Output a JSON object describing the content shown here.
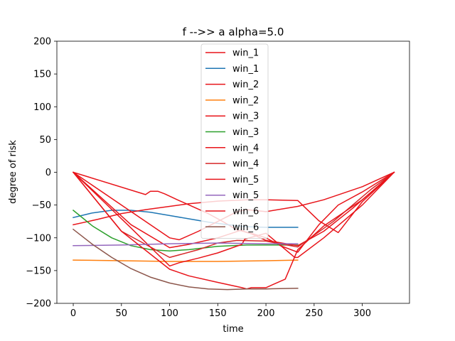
{
  "chart_data": {
    "type": "line",
    "title": "f -->> a  alpha=5.0",
    "xlabel": "time",
    "ylabel": "degree of risk",
    "xlim": [
      -17,
      349
    ],
    "ylim": [
      -200,
      200
    ],
    "xticks": [
      0,
      50,
      100,
      150,
      200,
      250,
      300
    ],
    "yticks": [
      200,
      150,
      100,
      50,
      0,
      -50,
      -100,
      -150,
      -200
    ],
    "xtick_labels": [
      "0",
      "50",
      "100",
      "150",
      "200",
      "250",
      "300"
    ],
    "ytick_labels": [
      "200",
      "150",
      "100",
      "50",
      "0",
      "−50",
      "−100",
      "−150",
      "−200"
    ],
    "grid": false,
    "legend_position": "top-center",
    "series": [
      {
        "name": "win_1",
        "color": "#e8141a",
        "x": [
          0,
          75,
          80,
          88,
          95,
          108,
          125,
          140,
          155,
          170,
          185,
          200,
          215,
          233,
          255,
          275,
          300,
          333
        ],
        "y": [
          0,
          -34,
          -29,
          -29,
          -33,
          -42,
          -53,
          -63,
          -75,
          -88,
          -93,
          -100,
          -112,
          -122,
          -80,
          -50,
          -30,
          0
        ]
      },
      {
        "name": "win_1",
        "color": "#1f77b4",
        "x": [
          0,
          20,
          40,
          60,
          80,
          100,
          120,
          140,
          160,
          180,
          200,
          233
        ],
        "y": [
          -69,
          -62,
          -58,
          -58,
          -61,
          -66,
          -71,
          -76,
          -80,
          -83,
          -84,
          -84
        ]
      },
      {
        "name": "win_2",
        "color": "#e8141a",
        "x": [
          0,
          100,
          110,
          130,
          150,
          170,
          180,
          200,
          233,
          260,
          300,
          333
        ],
        "y": [
          0,
          -100,
          -103,
          -90,
          -75,
          -60,
          -57,
          -60,
          -52,
          -42,
          -22,
          0
        ]
      },
      {
        "name": "win_2",
        "color": "#ff7f0e",
        "x": [
          0,
          50,
          100,
          150,
          200,
          233
        ],
        "y": [
          -134,
          -135,
          -136,
          -136,
          -135,
          -134
        ]
      },
      {
        "name": "win_3",
        "color": "#e8141a",
        "x": [
          0,
          25,
          50,
          75,
          100,
          120,
          150,
          180,
          200,
          233,
          255,
          275,
          300,
          333
        ],
        "y": [
          -80,
          -72,
          -63,
          -57,
          -52,
          -48,
          -44,
          -42,
          -42,
          -43,
          -74,
          -92,
          -45,
          0
        ]
      },
      {
        "name": "win_3",
        "color": "#2ca02c",
        "x": [
          0,
          20,
          40,
          60,
          80,
          100,
          120,
          150,
          180,
          200,
          233
        ],
        "y": [
          -58,
          -82,
          -100,
          -112,
          -118,
          -120,
          -118,
          -113,
          -111,
          -111,
          -111
        ]
      },
      {
        "name": "win_4",
        "color": "#e8141a",
        "x": [
          0,
          60,
          100,
          120,
          150,
          175,
          178,
          185,
          200,
          233,
          260,
          290,
          333
        ],
        "y": [
          0,
          -80,
          -115,
          -110,
          -100,
          -88,
          -91,
          -94,
          -104,
          -112,
          -90,
          -55,
          0
        ]
      },
      {
        "name": "win_4",
        "color": "#d62728",
        "x": [
          0,
          50,
          100,
          130,
          150,
          170,
          200,
          233,
          270,
          310,
          333
        ],
        "y": [
          0,
          -90,
          -130,
          -118,
          -108,
          -104,
          -105,
          -114,
          -75,
          -25,
          0
        ]
      },
      {
        "name": "win_5",
        "color": "#e8141a",
        "x": [
          0,
          60,
          100,
          110,
          130,
          150,
          175,
          178,
          200,
          230,
          233,
          260,
          300,
          333
        ],
        "y": [
          0,
          -85,
          -143,
          -138,
          -131,
          -123,
          -110,
          -102,
          -93,
          -130,
          -130,
          -100,
          -50,
          0
        ]
      },
      {
        "name": "win_5",
        "color": "#9467bd",
        "x": [
          0,
          50,
          100,
          150,
          200,
          233
        ],
        "y": [
          -112,
          -111,
          -109,
          -108,
          -109,
          -109
        ]
      },
      {
        "name": "win_6",
        "color": "#e8141a",
        "x": [
          0,
          50,
          100,
          120,
          150,
          175,
          180,
          185,
          200,
          220,
          233,
          260,
          300,
          333
        ],
        "y": [
          0,
          -90,
          -148,
          -158,
          -168,
          -176,
          -178,
          -176,
          -176,
          -163,
          -118,
          -82,
          -42,
          0
        ]
      },
      {
        "name": "win_6",
        "color": "#8c564b",
        "x": [
          0,
          20,
          40,
          60,
          80,
          100,
          120,
          140,
          160,
          180,
          200,
          233
        ],
        "y": [
          -87,
          -110,
          -130,
          -147,
          -160,
          -169,
          -175,
          -178,
          -179,
          -178,
          -178,
          -177
        ]
      }
    ]
  }
}
